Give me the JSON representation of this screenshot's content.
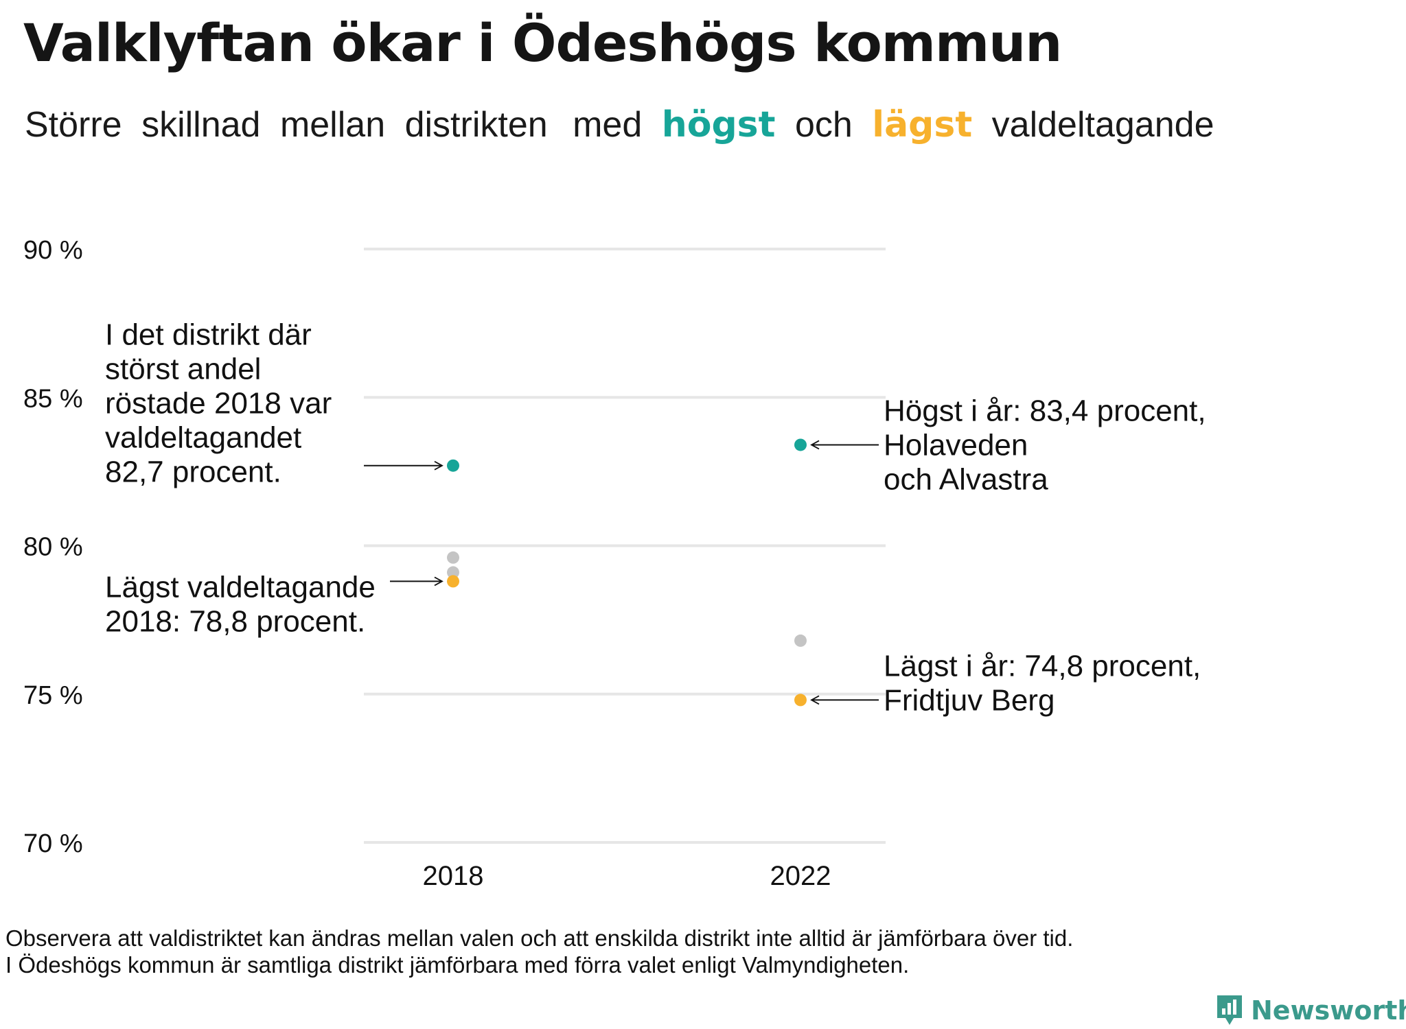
{
  "title": "Valklyftan ökar i Ödeshögs kommun",
  "subtitle": {
    "part1": "Större",
    "part2": "skillnad",
    "part3": "mellan",
    "part4": "distrikten",
    "part5": "med",
    "highest_word": "högst",
    "part6": "och",
    "lowest_word": "lägst",
    "part7": "valdeltagande"
  },
  "colors": {
    "highest": "#17a598",
    "lowest": "#f7b12d",
    "other": "#c4c4c4",
    "grid": "#e6e6e6",
    "brand": "#3b9a8c"
  },
  "chart_data": {
    "type": "scatter",
    "title": "Valklyftan ökar i Ödeshögs kommun",
    "categories": [
      "2018",
      "2022"
    ],
    "ylim": [
      70,
      90
    ],
    "y_ticks": [
      {
        "value": 90,
        "label": "90 %"
      },
      {
        "value": 85,
        "label": "85 %"
      },
      {
        "value": 80,
        "label": "80 %"
      },
      {
        "value": 75,
        "label": "75 %"
      },
      {
        "value": 70,
        "label": "70 %"
      }
    ],
    "grid": true,
    "points": [
      {
        "x": "2018",
        "y": 82.7,
        "group": "highest"
      },
      {
        "x": "2018",
        "y": 79.6,
        "group": "other"
      },
      {
        "x": "2018",
        "y": 79.1,
        "group": "other"
      },
      {
        "x": "2018",
        "y": 78.8,
        "group": "lowest"
      },
      {
        "x": "2022",
        "y": 83.4,
        "group": "highest"
      },
      {
        "x": "2022",
        "y": 76.8,
        "group": "other"
      },
      {
        "x": "2022",
        "y": 74.8,
        "group": "lowest"
      }
    ],
    "annotations": [
      {
        "text": [
          "I det distrikt där",
          "störst andel",
          "röstade 2018 var",
          "valdeltagandet",
          "82,7 procent."
        ],
        "x": "2018",
        "y": 82.7,
        "side": "left"
      },
      {
        "text": [
          "Lägst valdeltagande",
          "2018: 78,8 procent."
        ],
        "x": "2018",
        "y": 78.8,
        "side": "left"
      },
      {
        "text": [
          "Högst i år: 83,4 procent,",
          "Holaveden",
          "och Alvastra"
        ],
        "x": "2022",
        "y": 83.4,
        "side": "right"
      },
      {
        "text": [
          "Lägst i år: 74,8 procent,",
          "Fridtjuv Berg"
        ],
        "x": "2022",
        "y": 74.8,
        "side": "right"
      }
    ]
  },
  "footnote": {
    "line1": "Observera att valdistriktet kan ändras mellan valen och att enskilda distrikt inte alltid är jämförbara över tid.",
    "line2": "I Ödeshögs kommun är samtliga distrikt jämförbara med förra valet enligt Valmyndigheten."
  },
  "brand": {
    "name": "Newsworthy",
    "icon": "bar-chart-icon"
  }
}
